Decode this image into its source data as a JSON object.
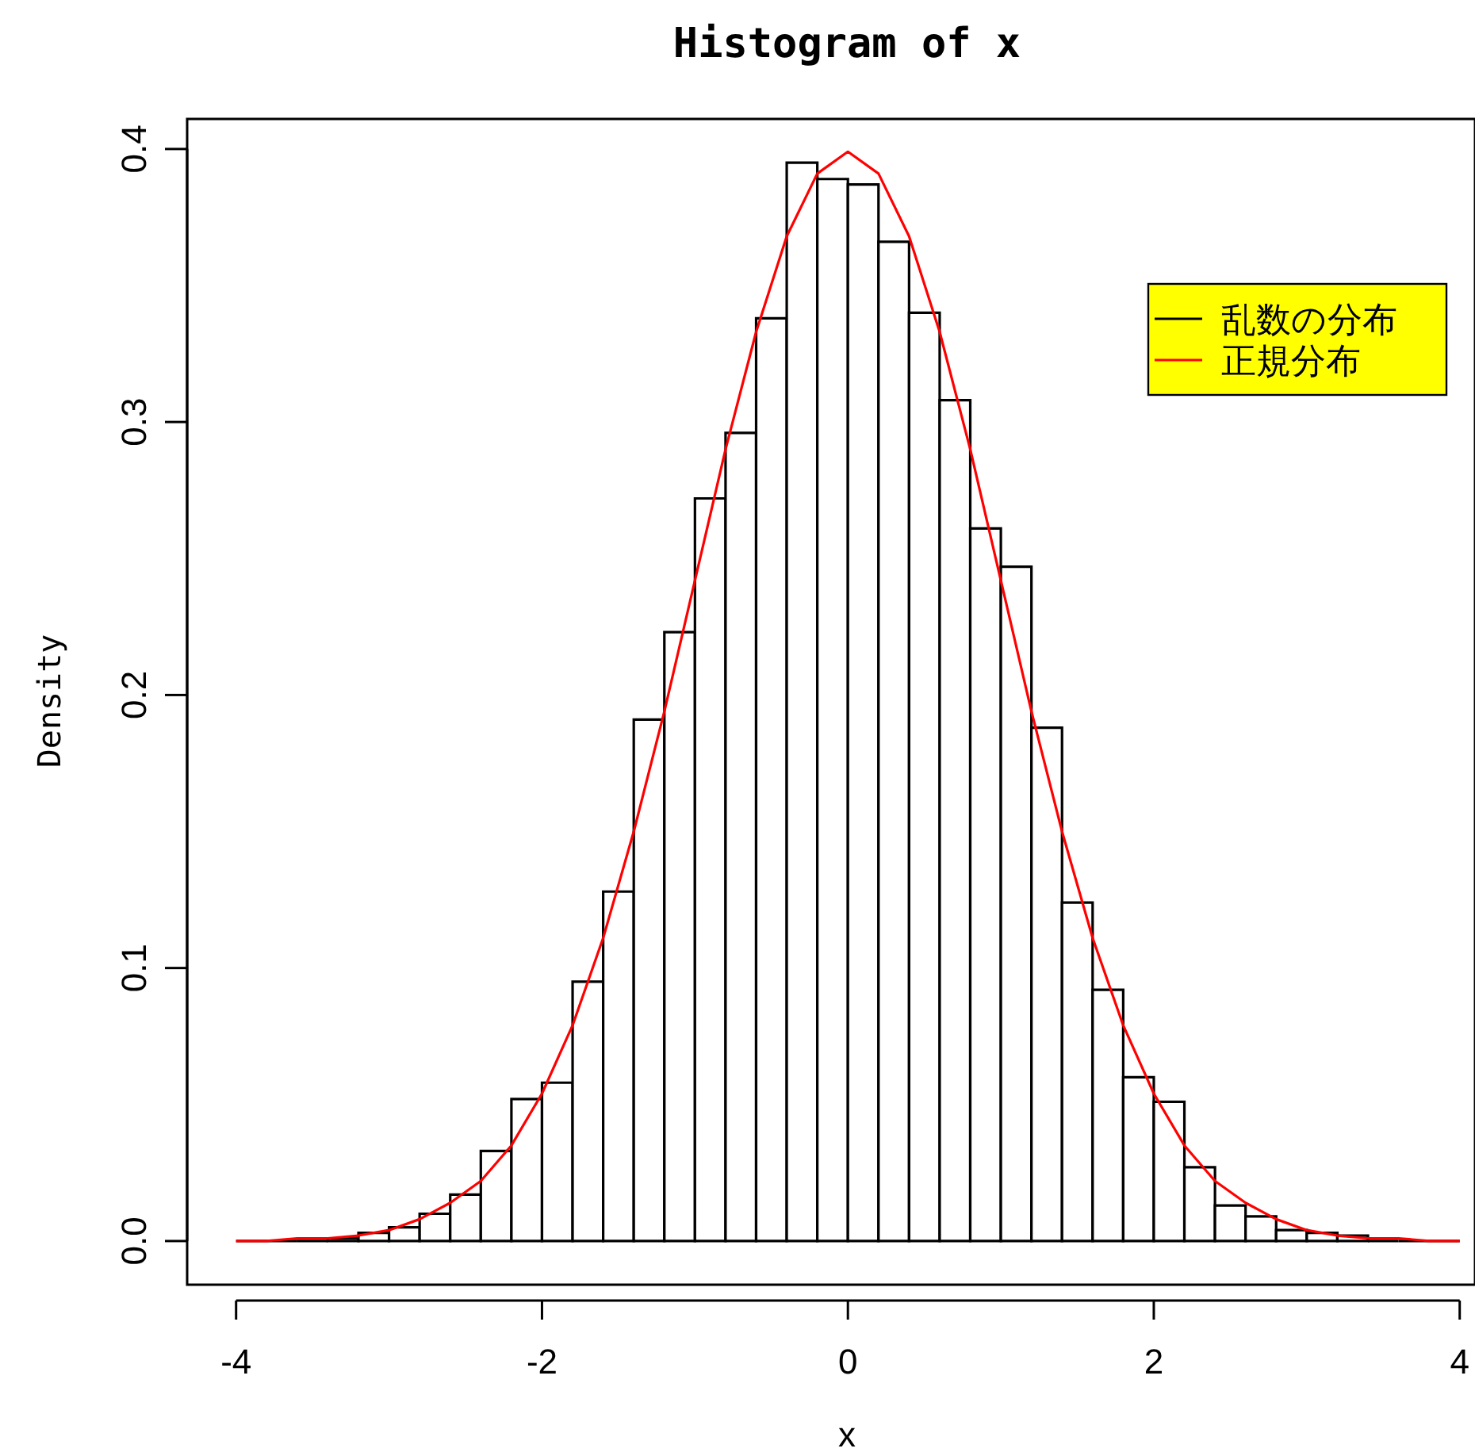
{
  "chart_data": {
    "type": "histogram",
    "title": "Histogram of x",
    "xlabel": "x",
    "ylabel": "Density",
    "bins": [
      -4,
      -3.8,
      -3.6,
      -3.4,
      -3.2,
      -3,
      -2.8,
      -2.6,
      -2.4,
      -2.2,
      -2,
      -1.8,
      -1.6,
      -1.4,
      -1.2,
      -1,
      -0.8,
      -0.6,
      -0.4,
      -0.2,
      0,
      0.2,
      0.4,
      0.6,
      0.8,
      1,
      1.2,
      1.4,
      1.6,
      1.8,
      2,
      2.2,
      2.4,
      2.6,
      2.8,
      3,
      3.2,
      3.4,
      3.6,
      3.8,
      4
    ],
    "series": [
      {
        "name": "乱数の分布",
        "color": "#000000",
        "values": [
          0,
          0,
          0,
          0.001,
          0.003,
          0.005,
          0.01,
          0.017,
          0.033,
          0.052,
          0.058,
          0.095,
          0.128,
          0.191,
          0.223,
          0.272,
          0.296,
          0.338,
          0.395,
          0.389,
          0.387,
          0.366,
          0.34,
          0.308,
          0.261,
          0.247,
          0.188,
          0.124,
          0.092,
          0.06,
          0.051,
          0.027,
          0.013,
          0.009,
          0.004,
          0.003,
          0.002,
          0,
          0,
          0
        ]
      },
      {
        "name": "正規分布",
        "type": "line",
        "color": "#ff0000",
        "x": [
          -4,
          -3.8,
          -3.6,
          -3.4,
          -3.2,
          -3,
          -2.8,
          -2.6,
          -2.4,
          -2.2,
          -2,
          -1.8,
          -1.6,
          -1.4,
          -1.2,
          -1,
          -0.8,
          -0.6,
          -0.4,
          -0.2,
          0,
          0.2,
          0.4,
          0.6,
          0.8,
          1,
          1.2,
          1.4,
          1.6,
          1.8,
          2,
          2.2,
          2.4,
          2.6,
          2.8,
          3,
          3.2,
          3.4,
          3.6,
          3.8,
          4
        ],
        "values": [
          0,
          0,
          0.001,
          0.001,
          0.002,
          0.004,
          0.008,
          0.014,
          0.022,
          0.035,
          0.054,
          0.079,
          0.111,
          0.15,
          0.194,
          0.242,
          0.29,
          0.333,
          0.368,
          0.391,
          0.399,
          0.391,
          0.368,
          0.333,
          0.29,
          0.242,
          0.194,
          0.15,
          0.111,
          0.079,
          0.054,
          0.035,
          0.022,
          0.014,
          0.008,
          0.004,
          0.002,
          0.001,
          0.001,
          0,
          0
        ]
      }
    ],
    "xlim": [
      -4.32,
      4.1
    ],
    "ylim": [
      -0.016,
      0.411
    ],
    "xticks": [
      -4,
      -2,
      0,
      2,
      4
    ],
    "yticks": [
      {
        "value": 0,
        "label": "0.0"
      },
      0.1,
      0.2,
      0.3,
      0.4
    ],
    "legend": "top right"
  }
}
